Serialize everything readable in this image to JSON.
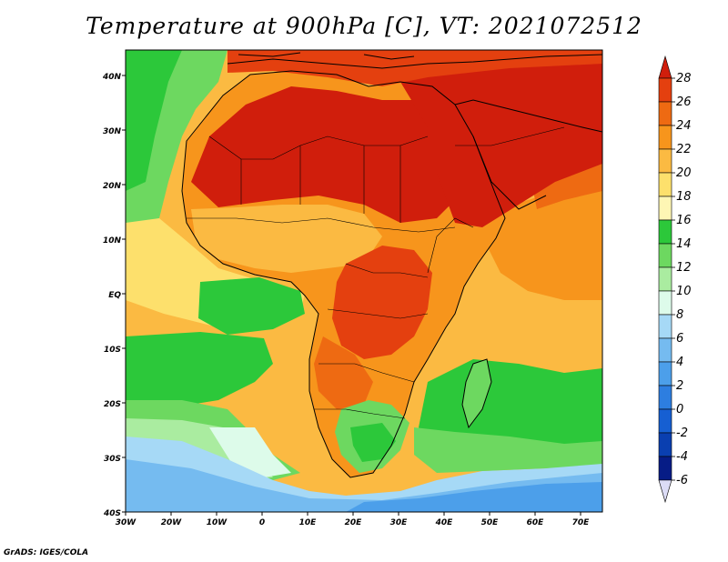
{
  "title": "Temperature at 900hPa [C], VT: 2021072512",
  "credit": "GrADS: IGES/COLA",
  "map": {
    "lat_labels": [
      "40N",
      "30N",
      "20N",
      "10N",
      "EQ",
      "10S",
      "20S",
      "30S",
      "40S"
    ],
    "lon_labels": [
      "30W",
      "20W",
      "10W",
      "0",
      "10E",
      "20E",
      "30E",
      "40E",
      "50E",
      "60E",
      "70E"
    ]
  },
  "colorbar": {
    "levels": [
      "28",
      "26",
      "24",
      "22",
      "20",
      "18",
      "16",
      "14",
      "12",
      "10",
      "8",
      "6",
      "4",
      "2",
      "0",
      "-2",
      "-4",
      "-6"
    ],
    "colors": [
      "#d01e0c",
      "#e4400f",
      "#ee6a12",
      "#f7951c",
      "#fbba42",
      "#fde06c",
      "#fef6b4",
      "#2cc83a",
      "#6dd860",
      "#aaeca0",
      "#ddfbea",
      "#a6d9f6",
      "#75bbf0",
      "#4c9fea",
      "#2d7ee0",
      "#165fd2",
      "#0a3fb0",
      "#061c86",
      "#dcdcf6"
    ]
  },
  "style": {
    "sea_warm": "#fde06c",
    "sea_cool_green": "#6dd860",
    "sea_cold_blue": "#4c9fea",
    "land_hot": "#d01e0c",
    "border": "#000000"
  }
}
